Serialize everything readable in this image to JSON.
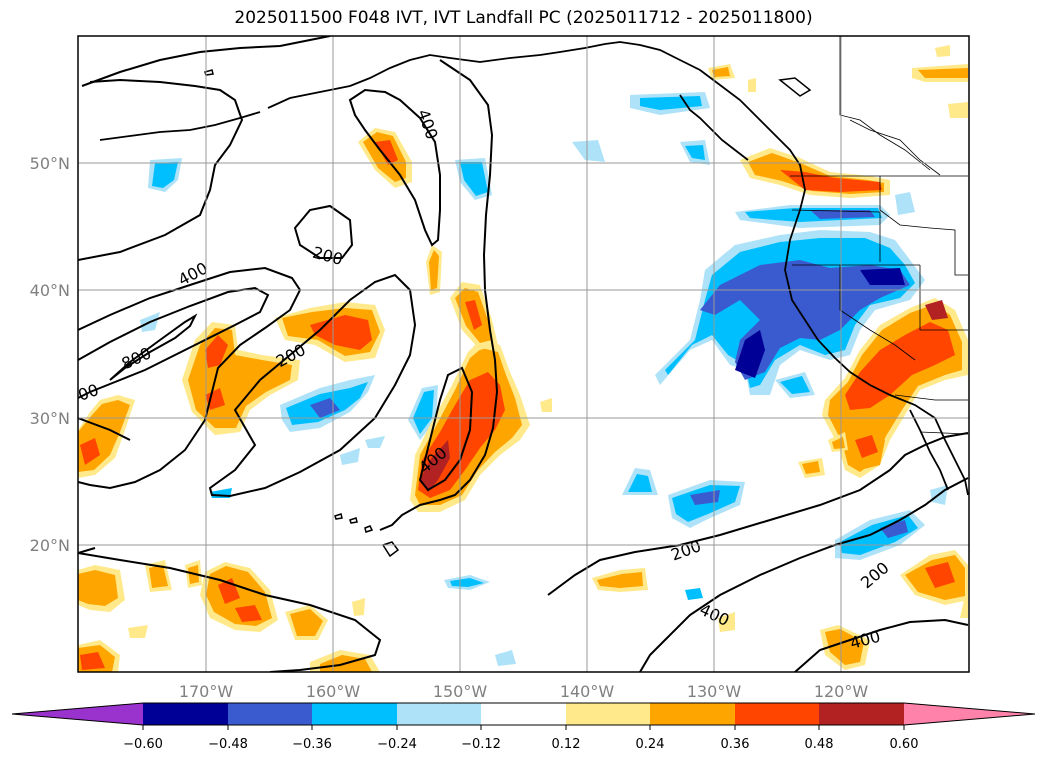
{
  "title": "2025011500 F048 IVT, IVT Landfall PC (2025011712 - 2025011800)",
  "lon_labels": [
    "170°W",
    "160°W",
    "150°W",
    "140°W",
    "130°W",
    "120°W"
  ],
  "lat_labels": [
    "50°N",
    "40°N",
    "30°N",
    "20°N"
  ],
  "contour_labels": {
    "c400_a": "400",
    "c400_b": "400",
    "c400_c": "400",
    "c400_d": "400",
    "c400_e": "400",
    "c200_a": "200",
    "c200_b": "200",
    "c200_c": "200",
    "c200_d": "200",
    "c800": "800",
    "c800_edge": "00"
  },
  "colorbar": {
    "ticks": [
      "−0.60",
      "−0.48",
      "−0.36",
      "−0.24",
      "−0.12",
      "0.12",
      "0.24",
      "0.36",
      "0.48",
      "0.60"
    ],
    "colors": {
      "under": "#9a32cd",
      "c1": "#000096",
      "c2": "#3a5bd0",
      "c3": "#00bfff",
      "c4": "#aee2f8",
      "c5": "#ffffff",
      "c6": "#ffe98a",
      "c7": "#ffa500",
      "c8": "#ff4500",
      "c9": "#b22222",
      "over": "#ff82ab"
    }
  }
}
